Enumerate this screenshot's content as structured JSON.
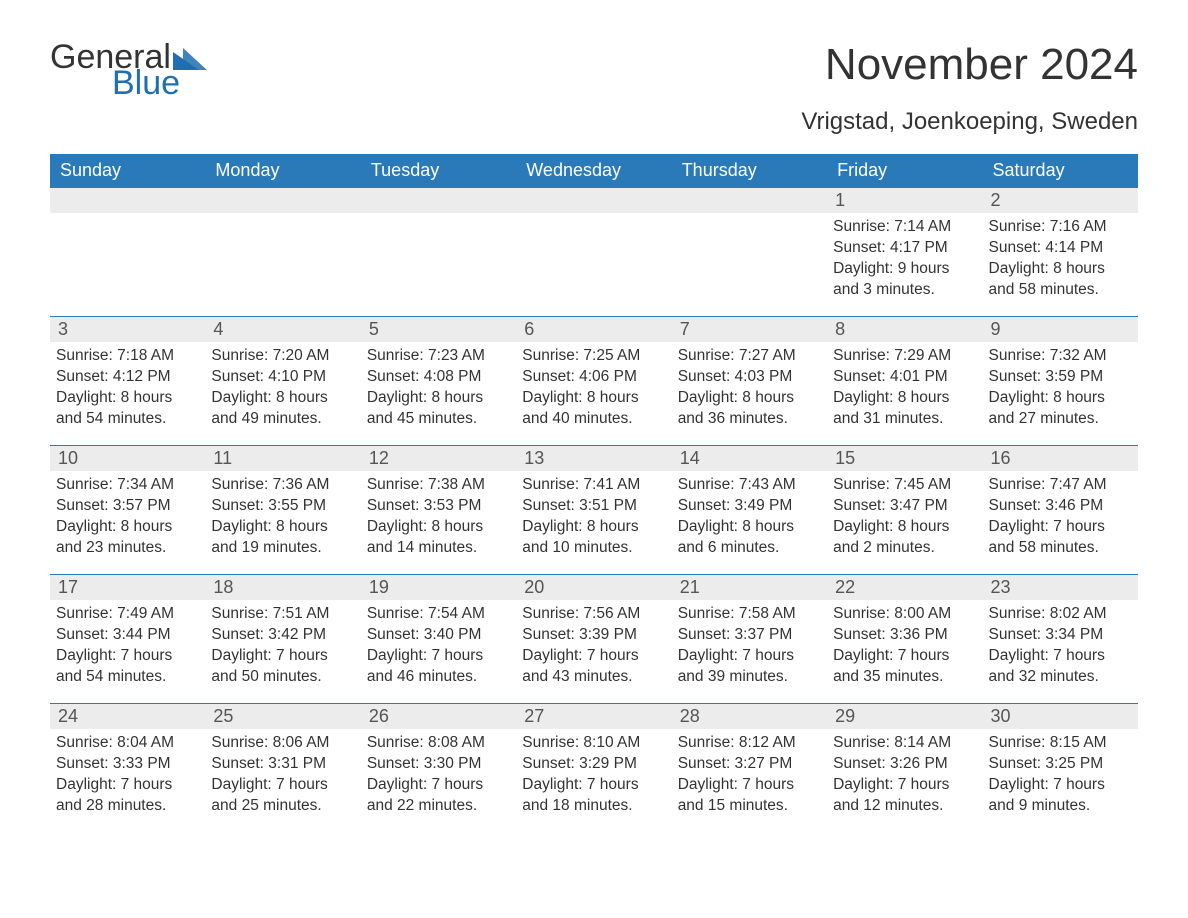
{
  "colors": {
    "header_bg": "#2a7ab9",
    "header_text": "#ffffff",
    "daynum_bg": "#ececec",
    "daynum_text": "#555555",
    "body_text": "#333333",
    "logo_blue": "#1f6fb2",
    "row_divider": "#2a7ab9"
  },
  "typography": {
    "title_fontsize": 44,
    "subtitle_fontsize": 24,
    "dow_fontsize": 18,
    "daynum_fontsize": 18,
    "body_fontsize": 15.5,
    "logo_fontsize": 34
  },
  "logo": {
    "word1": "General",
    "word2": "Blue"
  },
  "title": "November 2024",
  "subtitle": "Vrigstad, Joenkoeping, Sweden",
  "days_of_week": [
    "Sunday",
    "Monday",
    "Tuesday",
    "Wednesday",
    "Thursday",
    "Friday",
    "Saturday"
  ],
  "layout": {
    "columns": 7,
    "rows": 5,
    "first_day_column_index": 5
  },
  "weeks": [
    [
      null,
      null,
      null,
      null,
      null,
      {
        "n": "1",
        "sunrise": "Sunrise: 7:14 AM",
        "sunset": "Sunset: 4:17 PM",
        "day1": "Daylight: 9 hours",
        "day2": "and 3 minutes."
      },
      {
        "n": "2",
        "sunrise": "Sunrise: 7:16 AM",
        "sunset": "Sunset: 4:14 PM",
        "day1": "Daylight: 8 hours",
        "day2": "and 58 minutes."
      }
    ],
    [
      {
        "n": "3",
        "sunrise": "Sunrise: 7:18 AM",
        "sunset": "Sunset: 4:12 PM",
        "day1": "Daylight: 8 hours",
        "day2": "and 54 minutes."
      },
      {
        "n": "4",
        "sunrise": "Sunrise: 7:20 AM",
        "sunset": "Sunset: 4:10 PM",
        "day1": "Daylight: 8 hours",
        "day2": "and 49 minutes."
      },
      {
        "n": "5",
        "sunrise": "Sunrise: 7:23 AM",
        "sunset": "Sunset: 4:08 PM",
        "day1": "Daylight: 8 hours",
        "day2": "and 45 minutes."
      },
      {
        "n": "6",
        "sunrise": "Sunrise: 7:25 AM",
        "sunset": "Sunset: 4:06 PM",
        "day1": "Daylight: 8 hours",
        "day2": "and 40 minutes."
      },
      {
        "n": "7",
        "sunrise": "Sunrise: 7:27 AM",
        "sunset": "Sunset: 4:03 PM",
        "day1": "Daylight: 8 hours",
        "day2": "and 36 minutes."
      },
      {
        "n": "8",
        "sunrise": "Sunrise: 7:29 AM",
        "sunset": "Sunset: 4:01 PM",
        "day1": "Daylight: 8 hours",
        "day2": "and 31 minutes."
      },
      {
        "n": "9",
        "sunrise": "Sunrise: 7:32 AM",
        "sunset": "Sunset: 3:59 PM",
        "day1": "Daylight: 8 hours",
        "day2": "and 27 minutes."
      }
    ],
    [
      {
        "n": "10",
        "sunrise": "Sunrise: 7:34 AM",
        "sunset": "Sunset: 3:57 PM",
        "day1": "Daylight: 8 hours",
        "day2": "and 23 minutes."
      },
      {
        "n": "11",
        "sunrise": "Sunrise: 7:36 AM",
        "sunset": "Sunset: 3:55 PM",
        "day1": "Daylight: 8 hours",
        "day2": "and 19 minutes."
      },
      {
        "n": "12",
        "sunrise": "Sunrise: 7:38 AM",
        "sunset": "Sunset: 3:53 PM",
        "day1": "Daylight: 8 hours",
        "day2": "and 14 minutes."
      },
      {
        "n": "13",
        "sunrise": "Sunrise: 7:41 AM",
        "sunset": "Sunset: 3:51 PM",
        "day1": "Daylight: 8 hours",
        "day2": "and 10 minutes."
      },
      {
        "n": "14",
        "sunrise": "Sunrise: 7:43 AM",
        "sunset": "Sunset: 3:49 PM",
        "day1": "Daylight: 8 hours",
        "day2": "and 6 minutes."
      },
      {
        "n": "15",
        "sunrise": "Sunrise: 7:45 AM",
        "sunset": "Sunset: 3:47 PM",
        "day1": "Daylight: 8 hours",
        "day2": "and 2 minutes."
      },
      {
        "n": "16",
        "sunrise": "Sunrise: 7:47 AM",
        "sunset": "Sunset: 3:46 PM",
        "day1": "Daylight: 7 hours",
        "day2": "and 58 minutes."
      }
    ],
    [
      {
        "n": "17",
        "sunrise": "Sunrise: 7:49 AM",
        "sunset": "Sunset: 3:44 PM",
        "day1": "Daylight: 7 hours",
        "day2": "and 54 minutes."
      },
      {
        "n": "18",
        "sunrise": "Sunrise: 7:51 AM",
        "sunset": "Sunset: 3:42 PM",
        "day1": "Daylight: 7 hours",
        "day2": "and 50 minutes."
      },
      {
        "n": "19",
        "sunrise": "Sunrise: 7:54 AM",
        "sunset": "Sunset: 3:40 PM",
        "day1": "Daylight: 7 hours",
        "day2": "and 46 minutes."
      },
      {
        "n": "20",
        "sunrise": "Sunrise: 7:56 AM",
        "sunset": "Sunset: 3:39 PM",
        "day1": "Daylight: 7 hours",
        "day2": "and 43 minutes."
      },
      {
        "n": "21",
        "sunrise": "Sunrise: 7:58 AM",
        "sunset": "Sunset: 3:37 PM",
        "day1": "Daylight: 7 hours",
        "day2": "and 39 minutes."
      },
      {
        "n": "22",
        "sunrise": "Sunrise: 8:00 AM",
        "sunset": "Sunset: 3:36 PM",
        "day1": "Daylight: 7 hours",
        "day2": "and 35 minutes."
      },
      {
        "n": "23",
        "sunrise": "Sunrise: 8:02 AM",
        "sunset": "Sunset: 3:34 PM",
        "day1": "Daylight: 7 hours",
        "day2": "and 32 minutes."
      }
    ],
    [
      {
        "n": "24",
        "sunrise": "Sunrise: 8:04 AM",
        "sunset": "Sunset: 3:33 PM",
        "day1": "Daylight: 7 hours",
        "day2": "and 28 minutes."
      },
      {
        "n": "25",
        "sunrise": "Sunrise: 8:06 AM",
        "sunset": "Sunset: 3:31 PM",
        "day1": "Daylight: 7 hours",
        "day2": "and 25 minutes."
      },
      {
        "n": "26",
        "sunrise": "Sunrise: 8:08 AM",
        "sunset": "Sunset: 3:30 PM",
        "day1": "Daylight: 7 hours",
        "day2": "and 22 minutes."
      },
      {
        "n": "27",
        "sunrise": "Sunrise: 8:10 AM",
        "sunset": "Sunset: 3:29 PM",
        "day1": "Daylight: 7 hours",
        "day2": "and 18 minutes."
      },
      {
        "n": "28",
        "sunrise": "Sunrise: 8:12 AM",
        "sunset": "Sunset: 3:27 PM",
        "day1": "Daylight: 7 hours",
        "day2": "and 15 minutes."
      },
      {
        "n": "29",
        "sunrise": "Sunrise: 8:14 AM",
        "sunset": "Sunset: 3:26 PM",
        "day1": "Daylight: 7 hours",
        "day2": "and 12 minutes."
      },
      {
        "n": "30",
        "sunrise": "Sunrise: 8:15 AM",
        "sunset": "Sunset: 3:25 PM",
        "day1": "Daylight: 7 hours",
        "day2": "and 9 minutes."
      }
    ]
  ]
}
